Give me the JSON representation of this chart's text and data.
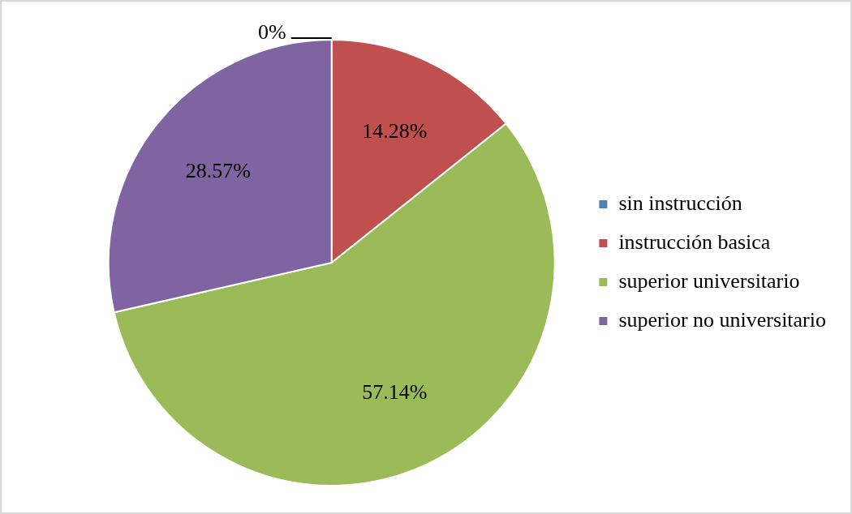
{
  "chart_data": {
    "type": "pie",
    "categories": [
      "sin instrucción",
      "instrucción basica",
      "superior universitario",
      "superior no universitario"
    ],
    "values": [
      0,
      14.28,
      57.14,
      28.57
    ],
    "colors": [
      "#4f81bd",
      "#c0504d",
      "#9bbb59",
      "#8064a2"
    ],
    "value_labels": [
      "0%",
      "14.28%",
      "57.14%",
      "28.57%"
    ],
    "legend": "right"
  }
}
